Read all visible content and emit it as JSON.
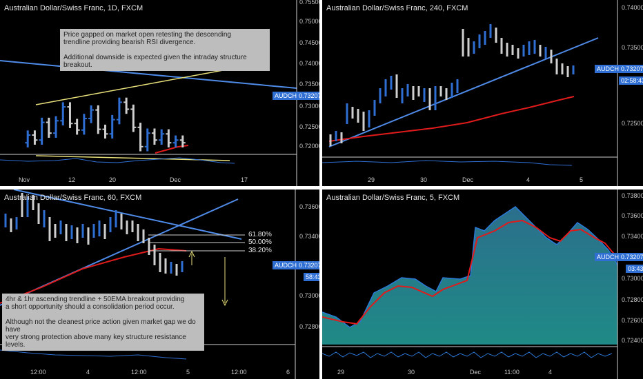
{
  "colors": {
    "bull": "#2f6fd4",
    "bear": "#cfcfcf",
    "trend": "#4f8be8",
    "support": "#e8e07a",
    "ema": "#e01b1b",
    "area": "#1e7f7c",
    "line5": "#2a78d8",
    "grid": "#1a1a1a",
    "axis": "#c8c8c8",
    "tag": "#2f6fd4"
  },
  "symbol": "AUDCHF",
  "panels": [
    {
      "id": "daily",
      "title": "Australian Dollar/Swiss Franc, 1D, FXCM",
      "price_tag": "0.73207",
      "time_tag": "",
      "note": "Price gapped on market open retesting the descending\ntrendline providing bearish RSI divergence.\n\nAdditional downside is expected given the intraday structure breakout.",
      "y_ticks": [
        "0.75500",
        "0.75000",
        "0.74500",
        "0.74000",
        "0.73500",
        "0.73000",
        "0.72500",
        "0.72000"
      ],
      "x_ticks": [
        "Nov",
        "12",
        "20",
        "Dec",
        "17"
      ]
    },
    {
      "id": "h4",
      "title": "Australian Dollar/Swiss Franc, 240, FXCM",
      "price_tag": "0.73207",
      "time_tag": "02:58:43",
      "note": "",
      "y_ticks": [
        "0.74000",
        "0.73500",
        "0.72500"
      ],
      "x_ticks": [
        "29",
        "30",
        "Dec",
        "4",
        "5"
      ]
    },
    {
      "id": "h1",
      "title": "Australian Dollar/Swiss Franc, 60, FXCM",
      "price_tag": "0.73207",
      "time_tag": "58:43",
      "note": "4hr & 1hr ascending trendline + 50EMA breakout providing\na short opportunity should a consolidation period occur.\n\nAlthough not the cleanest price action given market gap we do have\nvery strong protection above many key structure resistance levels.",
      "y_ticks": [
        "0.73600",
        "0.73400",
        "0.73000",
        "0.72800"
      ],
      "x_ticks": [
        "12:00",
        "4",
        "12:00",
        "5",
        "12:00",
        "6"
      ],
      "fib_levels": [
        "61.80%",
        "50.00%",
        "38.20%"
      ]
    },
    {
      "id": "m5",
      "title": "Australian Dollar/Swiss Franc, 5, FXCM",
      "price_tag": "0.73207",
      "time_tag": "03:43",
      "note": "",
      "y_ticks": [
        "0.73800",
        "0.73600",
        "0.73400",
        "0.73000",
        "0.72800",
        "0.72600",
        "0.72400"
      ],
      "x_ticks": [
        "29",
        "30",
        "Dec",
        "11:00",
        "4"
      ]
    }
  ],
  "chart_data": [
    {
      "type": "candlestick",
      "title": "Australian Dollar/Swiss Franc, 1D, FXCM",
      "ylim": [
        0.7175,
        0.7575
      ],
      "x_range": [
        0,
        48
      ],
      "bars": [
        [
          2,
          0.7205,
          0.7225
        ],
        [
          4,
          0.7225,
          0.7212
        ],
        [
          6,
          0.7212,
          0.7258
        ],
        [
          8,
          0.7258,
          0.723
        ],
        [
          10,
          0.723,
          0.7262
        ],
        [
          12,
          0.7262,
          0.7298
        ],
        [
          14,
          0.7298,
          0.7255
        ],
        [
          16,
          0.7255,
          0.7238
        ],
        [
          18,
          0.7238,
          0.7268
        ],
        [
          20,
          0.7268,
          0.729
        ],
        [
          22,
          0.729,
          0.724
        ],
        [
          24,
          0.724,
          0.7228
        ],
        [
          26,
          0.7228,
          0.7265
        ],
        [
          28,
          0.7265,
          0.731
        ],
        [
          30,
          0.731,
          0.7292
        ],
        [
          32,
          0.7292,
          0.7245
        ],
        [
          34,
          0.7245,
          0.7195
        ],
        [
          36,
          0.7195,
          0.723
        ],
        [
          38,
          0.723,
          0.7212
        ],
        [
          40,
          0.7212,
          0.7228
        ],
        [
          42,
          0.7228,
          0.7205
        ],
        [
          44,
          0.7205,
          0.7212
        ],
        [
          46,
          0.7212,
          0.7205
        ]
      ],
      "lines": []
    }
  ]
}
